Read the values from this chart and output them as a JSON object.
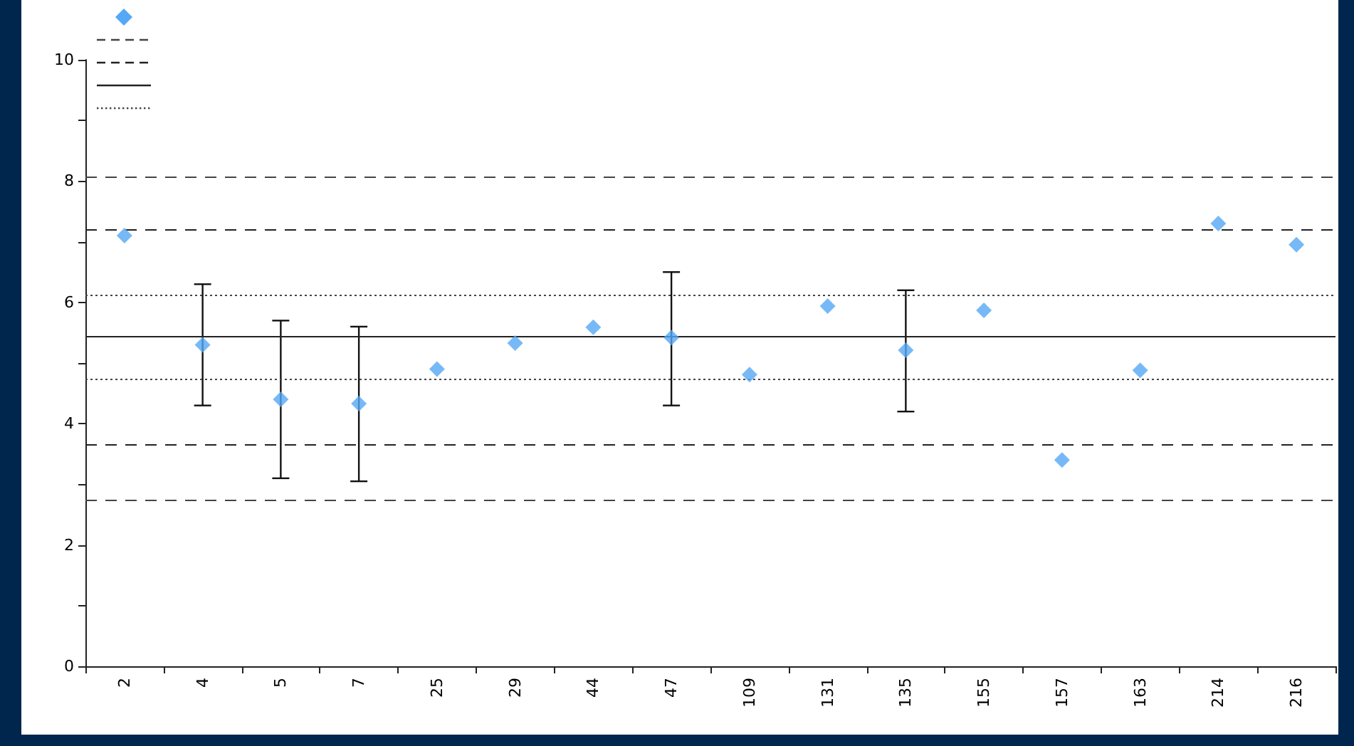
{
  "chart_data": {
    "type": "scatter",
    "categories": [
      "2",
      "4",
      "5",
      "7",
      "25",
      "29",
      "44",
      "47",
      "109",
      "131",
      "135",
      "155",
      "157",
      "163",
      "214",
      "216"
    ],
    "series": [
      {
        "color": "#55a8f5",
        "marker": "diamond",
        "values": [
          7.1,
          5.3,
          4.4,
          4.33,
          4.9,
          5.33,
          5.59,
          5.42,
          4.81,
          5.94,
          5.21,
          5.87,
          3.4,
          4.88,
          7.3,
          6.95
        ],
        "errors": [
          null,
          [
            4.3,
            6.3
          ],
          [
            3.1,
            5.7
          ],
          [
            3.05,
            5.6
          ],
          null,
          null,
          null,
          [
            4.3,
            6.5
          ],
          null,
          null,
          [
            4.2,
            6.2
          ],
          null,
          null,
          null,
          null,
          null
        ]
      }
    ],
    "ylim": [
      0,
      10
    ],
    "yticks": [
      0,
      {
        "value": 1,
        "label": null
      },
      2,
      {
        "value": 3,
        "label": null
      },
      4,
      {
        "value": 5,
        "label": null
      },
      6,
      {
        "value": 7,
        "label": null
      },
      8,
      {
        "value": 9,
        "label": null
      },
      10
    ],
    "ref_lines": [
      {
        "axis": "y",
        "value": 8.08,
        "line_style": "dashed",
        "color": "#444444"
      },
      {
        "axis": "y",
        "value": 7.2,
        "line_style": "dashed",
        "color": "#222222"
      },
      {
        "axis": "y",
        "value": 5.43,
        "line_style": "solid",
        "color": "#222222"
      },
      {
        "axis": "y",
        "value": 6.12,
        "line_style": "dotted",
        "color": "#444444"
      },
      {
        "axis": "y",
        "value": 4.73,
        "line_style": "dotted",
        "color": "#444444"
      },
      {
        "axis": "y",
        "value": 3.66,
        "line_style": "dashed",
        "color": "#222222"
      },
      {
        "axis": "y",
        "value": 2.75,
        "line_style": "dashed",
        "color": "#444444"
      }
    ],
    "grid": false
  }
}
